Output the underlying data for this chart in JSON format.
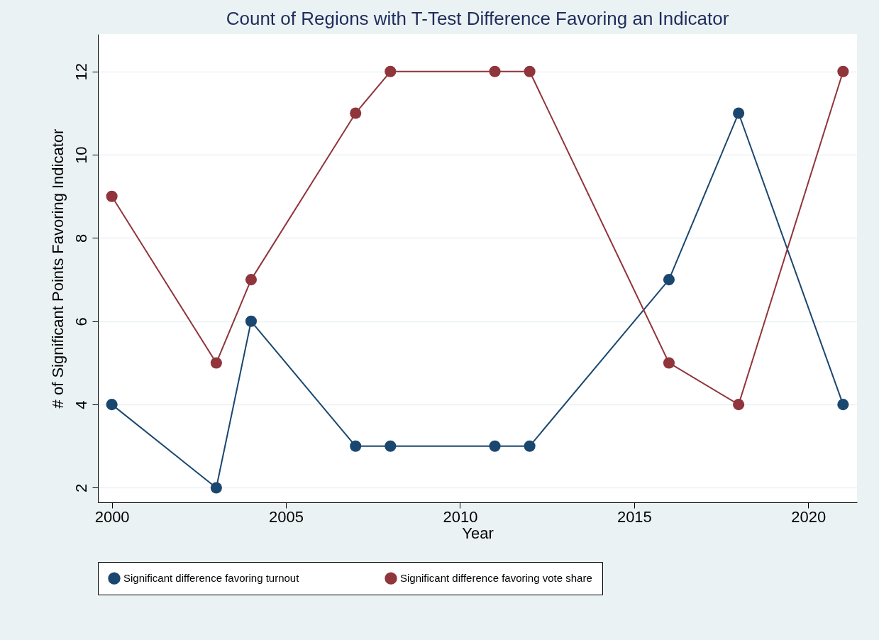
{
  "chart_data": {
    "type": "line",
    "title": "Count of Regions with T-Test Difference Favoring an Indicator",
    "xlabel": "Year",
    "ylabel": "# of Significant Points Favoring Indicator",
    "x": [
      2000,
      2003,
      2004,
      2007,
      2008,
      2011,
      2012,
      2016,
      2018,
      2021
    ],
    "series": [
      {
        "name": "Significant difference favoring turnout",
        "color": "#1a476f",
        "values": [
          4,
          2,
          6,
          3,
          3,
          3,
          3,
          7,
          11,
          4
        ]
      },
      {
        "name": "Significant difference favoring vote share",
        "color": "#90353b",
        "values": [
          9,
          5,
          7,
          11,
          12,
          12,
          12,
          5,
          4,
          12
        ]
      }
    ],
    "xlim": [
      1999.6,
      2021.4
    ],
    "xticks": [
      2000,
      2005,
      2010,
      2015,
      2020
    ],
    "ylim": [
      1.65,
      12.9
    ],
    "yticks": [
      2,
      4,
      6,
      8,
      10,
      12
    ],
    "grid": "y",
    "legend": "bottom",
    "marker": "circle",
    "line_style": "solid"
  }
}
